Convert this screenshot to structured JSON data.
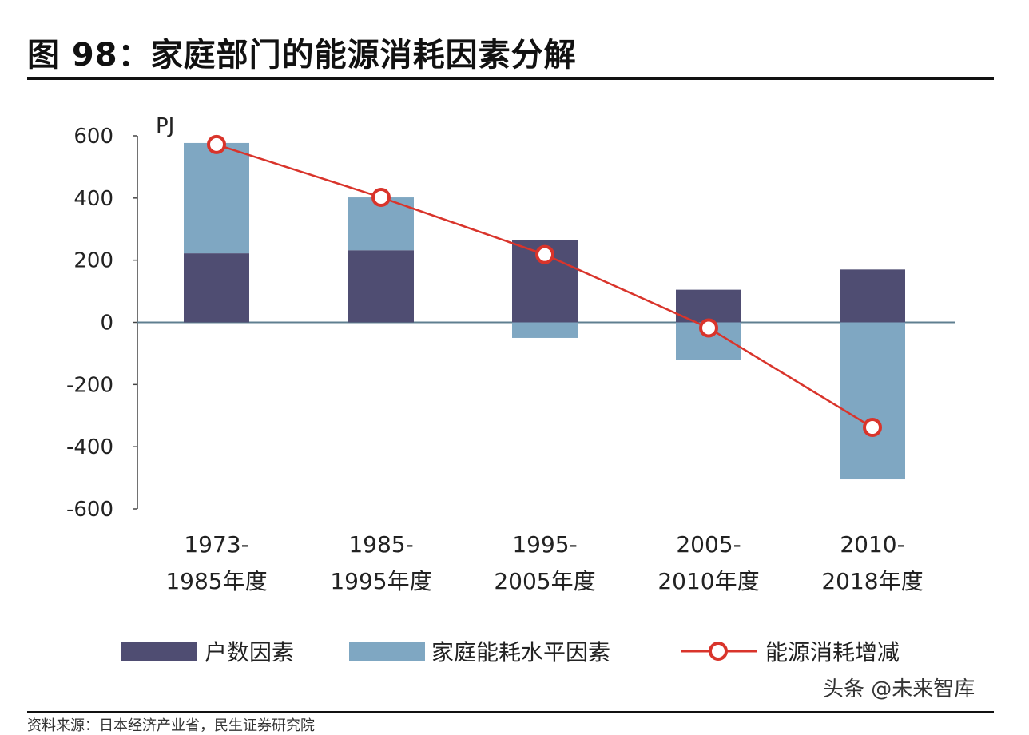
{
  "page": {
    "title": "图 98：家庭部门的能源消耗因素分解",
    "source": "资料来源：日本经济产业省，民生证券研究院",
    "watermark": "头条 @未来智库"
  },
  "chart_data": {
    "type": "bar",
    "stacked": true,
    "unit_label": "PJ",
    "categories": [
      [
        "1973-",
        "1985年度"
      ],
      [
        "1985-",
        "1995年度"
      ],
      [
        "1995-",
        "2005年度"
      ],
      [
        "2005-",
        "2010年度"
      ],
      [
        "2010-",
        "2018年度"
      ]
    ],
    "series": [
      {
        "name": "户数因素",
        "kind": "bar",
        "color": "#4f4d72",
        "values": [
          222,
          232,
          265,
          105,
          170
        ]
      },
      {
        "name": "家庭能耗水平因素",
        "kind": "bar",
        "color": "#7fa7c2",
        "values": [
          355,
          170,
          -50,
          -120,
          -505
        ]
      },
      {
        "name": "能源消耗增减",
        "kind": "line",
        "color": "#d9342b",
        "values": [
          572,
          402,
          218,
          -18,
          -338
        ]
      }
    ],
    "ylim": [
      -600,
      600
    ],
    "yticks": [
      600,
      400,
      200,
      0,
      -200,
      -400,
      -600
    ],
    "ytick_labels": [
      "600",
      "400",
      "200",
      "0",
      "-200",
      "-400",
      "-600"
    ],
    "xlabel": "",
    "ylabel": "",
    "legend_position": "bottom",
    "grid": false
  }
}
